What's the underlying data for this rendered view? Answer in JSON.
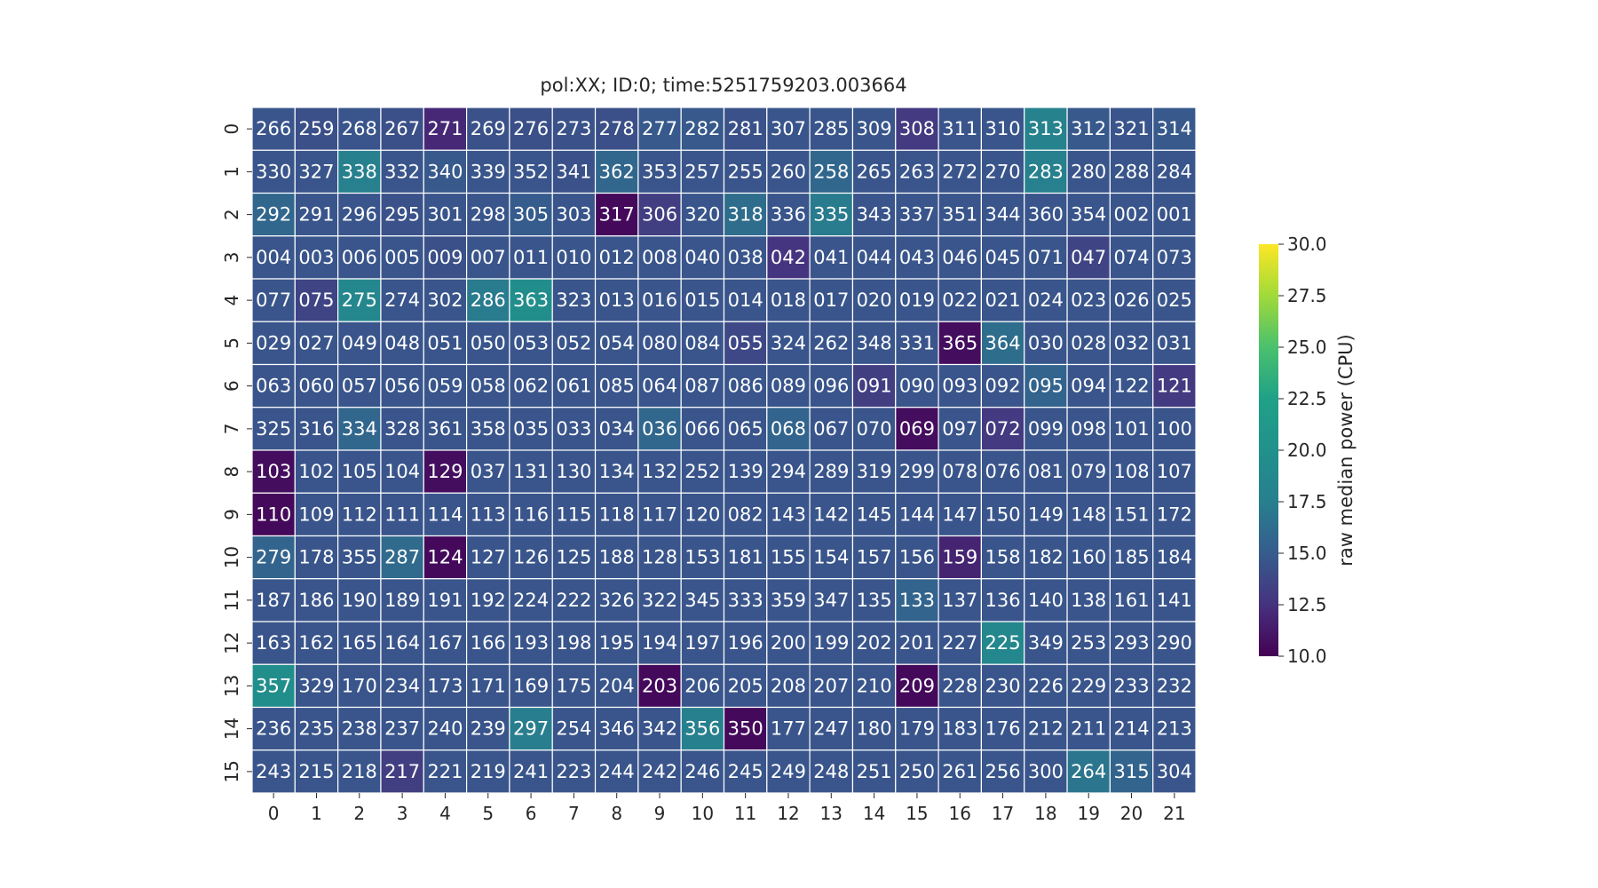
{
  "chart_data": {
    "type": "heatmap",
    "title": "pol:XX; ID:0; time:5251759203.003664",
    "x_ticks": [
      "0",
      "1",
      "2",
      "3",
      "4",
      "5",
      "6",
      "7",
      "8",
      "9",
      "10",
      "11",
      "12",
      "13",
      "14",
      "15",
      "16",
      "17",
      "18",
      "19",
      "20",
      "21"
    ],
    "y_ticks": [
      "0",
      "1",
      "2",
      "3",
      "4",
      "5",
      "6",
      "7",
      "8",
      "9",
      "10",
      "11",
      "12",
      "13",
      "14",
      "15"
    ],
    "labels": [
      [
        "266",
        "259",
        "268",
        "267",
        "271",
        "269",
        "276",
        "273",
        "278",
        "277",
        "282",
        "281",
        "307",
        "285",
        "309",
        "308",
        "311",
        "310",
        "313",
        "312",
        "321",
        "314"
      ],
      [
        "330",
        "327",
        "338",
        "332",
        "340",
        "339",
        "352",
        "341",
        "362",
        "353",
        "257",
        "255",
        "260",
        "258",
        "265",
        "263",
        "272",
        "270",
        "283",
        "280",
        "288",
        "284"
      ],
      [
        "292",
        "291",
        "296",
        "295",
        "301",
        "298",
        "305",
        "303",
        "317",
        "306",
        "320",
        "318",
        "336",
        "335",
        "343",
        "337",
        "351",
        "344",
        "360",
        "354",
        "002",
        "001"
      ],
      [
        "004",
        "003",
        "006",
        "005",
        "009",
        "007",
        "011",
        "010",
        "012",
        "008",
        "040",
        "038",
        "042",
        "041",
        "044",
        "043",
        "046",
        "045",
        "071",
        "047",
        "074",
        "073"
      ],
      [
        "077",
        "075",
        "275",
        "274",
        "302",
        "286",
        "363",
        "323",
        "013",
        "016",
        "015",
        "014",
        "018",
        "017",
        "020",
        "019",
        "022",
        "021",
        "024",
        "023",
        "026",
        "025"
      ],
      [
        "029",
        "027",
        "049",
        "048",
        "051",
        "050",
        "053",
        "052",
        "054",
        "080",
        "084",
        "055",
        "324",
        "262",
        "348",
        "331",
        "365",
        "364",
        "030",
        "028",
        "032",
        "031"
      ],
      [
        "063",
        "060",
        "057",
        "056",
        "059",
        "058",
        "062",
        "061",
        "085",
        "064",
        "087",
        "086",
        "089",
        "096",
        "091",
        "090",
        "093",
        "092",
        "095",
        "094",
        "122",
        "121"
      ],
      [
        "325",
        "316",
        "334",
        "328",
        "361",
        "358",
        "035",
        "033",
        "034",
        "036",
        "066",
        "065",
        "068",
        "067",
        "070",
        "069",
        "097",
        "072",
        "099",
        "098",
        "101",
        "100"
      ],
      [
        "103",
        "102",
        "105",
        "104",
        "129",
        "037",
        "131",
        "130",
        "134",
        "132",
        "252",
        "139",
        "294",
        "289",
        "319",
        "299",
        "078",
        "076",
        "081",
        "079",
        "108",
        "107"
      ],
      [
        "110",
        "109",
        "112",
        "111",
        "114",
        "113",
        "116",
        "115",
        "118",
        "117",
        "120",
        "082",
        "143",
        "142",
        "145",
        "144",
        "147",
        "150",
        "149",
        "148",
        "151",
        "172"
      ],
      [
        "279",
        "178",
        "355",
        "287",
        "124",
        "127",
        "126",
        "125",
        "188",
        "128",
        "153",
        "181",
        "155",
        "154",
        "157",
        "156",
        "159",
        "158",
        "182",
        "160",
        "185",
        "184"
      ],
      [
        "187",
        "186",
        "190",
        "189",
        "191",
        "192",
        "224",
        "222",
        "326",
        "322",
        "345",
        "333",
        "359",
        "347",
        "135",
        "133",
        "137",
        "136",
        "140",
        "138",
        "161",
        "141"
      ],
      [
        "163",
        "162",
        "165",
        "164",
        "167",
        "166",
        "193",
        "198",
        "195",
        "194",
        "197",
        "196",
        "200",
        "199",
        "202",
        "201",
        "227",
        "225",
        "349",
        "253",
        "293",
        "290"
      ],
      [
        "357",
        "329",
        "170",
        "234",
        "173",
        "171",
        "169",
        "175",
        "204",
        "203",
        "206",
        "205",
        "208",
        "207",
        "210",
        "209",
        "228",
        "230",
        "226",
        "229",
        "233",
        "232"
      ],
      [
        "236",
        "235",
        "238",
        "237",
        "240",
        "239",
        "297",
        "254",
        "346",
        "342",
        "356",
        "350",
        "177",
        "247",
        "180",
        "179",
        "183",
        "176",
        "212",
        "211",
        "214",
        "213"
      ],
      [
        "243",
        "215",
        "218",
        "217",
        "221",
        "219",
        "241",
        "223",
        "244",
        "242",
        "246",
        "245",
        "249",
        "248",
        "251",
        "250",
        "261",
        "256",
        "300",
        "264",
        "315",
        "304"
      ]
    ],
    "values": [
      [
        14.6,
        14.2,
        14.6,
        14.2,
        12.0,
        14.4,
        14.2,
        14.4,
        14.2,
        14.8,
        14.8,
        14.4,
        14.6,
        14.6,
        14.6,
        13.0,
        14.6,
        14.6,
        18.0,
        14.8,
        14.6,
        14.8
      ],
      [
        14.6,
        14.6,
        17.6,
        14.6,
        14.8,
        14.6,
        14.6,
        14.4,
        15.8,
        14.6,
        14.6,
        14.6,
        14.6,
        15.8,
        14.6,
        14.6,
        14.6,
        14.6,
        17.6,
        14.6,
        14.6,
        14.6
      ],
      [
        15.8,
        14.6,
        14.6,
        14.4,
        14.6,
        14.6,
        15.0,
        14.6,
        10.4,
        13.2,
        14.6,
        16.2,
        14.6,
        17.2,
        14.6,
        14.6,
        14.6,
        14.6,
        14.6,
        14.6,
        14.6,
        14.6
      ],
      [
        14.6,
        14.6,
        14.6,
        14.6,
        14.2,
        14.6,
        14.6,
        14.6,
        14.6,
        14.6,
        14.6,
        14.6,
        12.6,
        14.6,
        14.6,
        14.6,
        14.6,
        14.6,
        14.6,
        13.6,
        14.6,
        14.6
      ],
      [
        14.6,
        13.6,
        18.6,
        14.6,
        14.6,
        17.2,
        19.6,
        14.6,
        14.6,
        14.6,
        14.6,
        14.6,
        14.6,
        14.6,
        14.6,
        14.6,
        14.6,
        14.6,
        14.6,
        14.6,
        14.6,
        14.6
      ],
      [
        14.6,
        14.6,
        14.6,
        14.6,
        14.6,
        14.6,
        14.6,
        14.6,
        14.6,
        14.6,
        14.6,
        13.8,
        14.6,
        14.6,
        14.6,
        14.6,
        10.6,
        16.2,
        14.6,
        14.6,
        14.6,
        14.6
      ],
      [
        14.6,
        14.6,
        14.6,
        14.6,
        14.6,
        14.6,
        14.6,
        14.6,
        14.6,
        14.6,
        14.6,
        14.6,
        14.6,
        14.6,
        13.2,
        14.6,
        14.6,
        14.6,
        15.6,
        14.6,
        14.6,
        13.0
      ],
      [
        14.6,
        14.6,
        15.8,
        14.6,
        14.6,
        14.6,
        14.6,
        14.6,
        14.6,
        15.8,
        14.6,
        14.6,
        15.6,
        14.6,
        14.6,
        10.6,
        14.6,
        13.0,
        14.6,
        14.6,
        14.6,
        14.6
      ],
      [
        10.6,
        14.6,
        14.6,
        14.6,
        10.6,
        14.6,
        14.6,
        14.6,
        14.6,
        14.6,
        14.6,
        14.6,
        14.6,
        14.6,
        14.6,
        14.6,
        14.6,
        14.6,
        14.6,
        14.6,
        14.6,
        14.6
      ],
      [
        10.4,
        14.6,
        14.6,
        14.6,
        14.6,
        14.6,
        14.6,
        14.6,
        14.6,
        14.6,
        14.6,
        14.6,
        14.6,
        14.6,
        14.6,
        14.6,
        14.6,
        14.6,
        14.6,
        14.6,
        14.6,
        14.6
      ],
      [
        15.6,
        14.6,
        14.6,
        16.0,
        10.4,
        14.6,
        14.6,
        14.6,
        14.6,
        14.6,
        14.6,
        14.6,
        14.6,
        14.6,
        14.6,
        14.6,
        11.8,
        14.6,
        14.6,
        14.6,
        14.6,
        14.6
      ],
      [
        14.6,
        14.6,
        14.6,
        14.6,
        14.6,
        14.6,
        14.6,
        14.6,
        14.6,
        14.6,
        14.6,
        14.6,
        14.6,
        14.6,
        14.6,
        15.6,
        14.6,
        14.6,
        14.6,
        14.6,
        14.6,
        14.6
      ],
      [
        14.6,
        14.6,
        14.6,
        14.6,
        14.6,
        14.6,
        14.6,
        14.6,
        14.6,
        14.6,
        14.6,
        14.6,
        14.6,
        14.6,
        14.6,
        14.6,
        14.6,
        18.6,
        14.6,
        14.6,
        14.6,
        14.6
      ],
      [
        19.6,
        14.6,
        14.6,
        14.6,
        14.6,
        14.6,
        14.6,
        14.6,
        14.6,
        10.4,
        14.6,
        14.6,
        14.6,
        14.6,
        14.6,
        10.4,
        14.6,
        14.6,
        14.6,
        14.6,
        14.6,
        14.6
      ],
      [
        14.6,
        14.6,
        14.6,
        14.6,
        14.6,
        14.6,
        17.4,
        14.6,
        14.6,
        14.6,
        17.6,
        10.4,
        14.6,
        14.6,
        14.6,
        14.6,
        14.6,
        14.6,
        14.6,
        14.6,
        14.6,
        14.6
      ],
      [
        14.6,
        14.6,
        14.6,
        13.2,
        14.6,
        14.6,
        14.6,
        14.6,
        14.6,
        14.6,
        14.6,
        14.6,
        14.6,
        14.6,
        14.6,
        14.6,
        14.6,
        14.6,
        14.6,
        16.8,
        15.6,
        14.6
      ]
    ],
    "colorbar": {
      "label": "raw median power (CPU)",
      "min": 10.0,
      "max": 30.0,
      "ticks": [
        "10.0",
        "12.5",
        "15.0",
        "17.5",
        "20.0",
        "22.5",
        "25.0",
        "27.5",
        "30.0"
      ],
      "colormap": "viridis"
    },
    "grid": true
  }
}
